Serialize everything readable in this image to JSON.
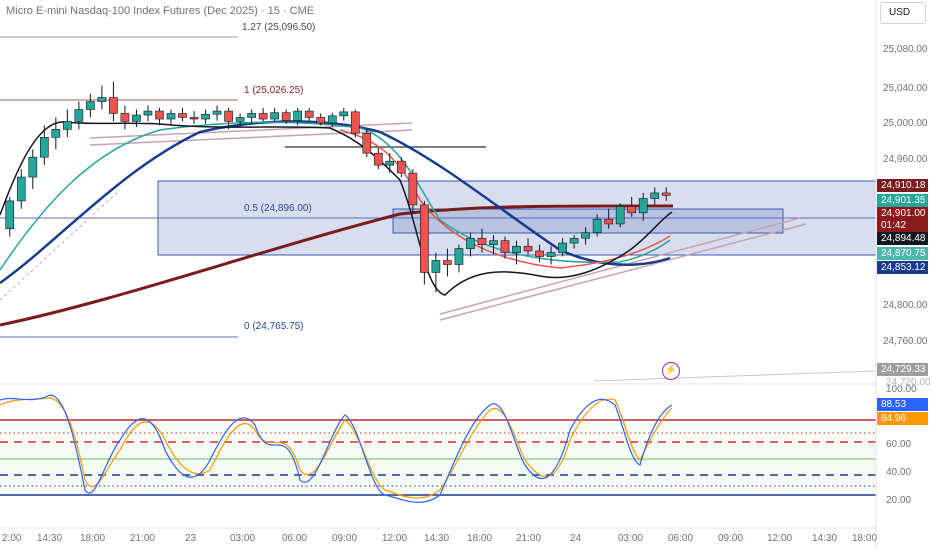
{
  "chart": {
    "title": "Micro E-mini Nasdaq-100 Index Futures (Dec 2025) · 15 · CME",
    "currency": "USD"
  },
  "fib_levels": [
    {
      "label": "1.27 (25,096.50)",
      "color": "#787b86"
    },
    {
      "label": "1 (25,026.25)",
      "color": "#8b1a1a"
    },
    {
      "label": "0.5 (24,896.00)",
      "color": "#2747a3"
    },
    {
      "label": "0 (24,765.75)",
      "color": "#2747a3"
    }
  ],
  "price_axis": {
    "ticks": [
      "25,080.00",
      "25,040.00",
      "25,000.00",
      "24,960.00",
      "24,800.00",
      "24,760.00"
    ],
    "tags": [
      {
        "text": "24,910.18",
        "color": "#7b1c1c"
      },
      {
        "text": "24,901.35",
        "color": "#26a69a"
      },
      {
        "text": "24,901.00",
        "color": "#8b1a1a"
      },
      {
        "text": "01:42",
        "color": "#8b1a1a"
      },
      {
        "text": "24,894.48",
        "color": "#131722"
      },
      {
        "text": "24,870.75",
        "color": "#4db6ac"
      },
      {
        "text": "24,853.12",
        "color": "#1a3a8f"
      },
      {
        "text": "24,729.33",
        "color": "#787b86"
      }
    ],
    "partial_tick": "24,720.00"
  },
  "osc_axis": {
    "ticks": [
      "100.00",
      "60.00",
      "40.00",
      "20.00"
    ],
    "tags": [
      {
        "text": "88.53",
        "color": "#2962ff"
      },
      {
        "text": "84.96",
        "color": "#ff9800"
      }
    ]
  },
  "time_axis": {
    "labels": [
      "2:00",
      "14:30",
      "18:00",
      "21:00",
      "23",
      "03:00",
      "06:00",
      "09:00",
      "12:00",
      "14:30",
      "18:00",
      "21:00",
      "24",
      "03:00",
      "06:00",
      "09:00",
      "12:00",
      "14:30",
      "18:00"
    ]
  },
  "chart_data": {
    "type": "candlestick",
    "title": "Micro E-mini Nasdaq-100 Index Futures (Dec 2025) · 15 · CME",
    "ylim": [
      24720,
      25110
    ],
    "candles": [
      [
        24860,
        24900,
        24850,
        24895
      ],
      [
        24895,
        24935,
        24885,
        24925
      ],
      [
        24925,
        24960,
        24910,
        24950
      ],
      [
        24950,
        24990,
        24940,
        24975
      ],
      [
        24975,
        25000,
        24960,
        24985
      ],
      [
        24985,
        25010,
        24975,
        24995
      ],
      [
        24995,
        25020,
        24985,
        25010
      ],
      [
        25010,
        25030,
        25000,
        25020
      ],
      [
        25020,
        25040,
        25010,
        25025
      ],
      [
        25025,
        25045,
        24995,
        25005
      ],
      [
        25005,
        25015,
        24985,
        24995
      ],
      [
        24995,
        25010,
        24988,
        25003
      ],
      [
        25003,
        25015,
        24995,
        25008
      ],
      [
        25008,
        25012,
        24990,
        24998
      ],
      [
        24998,
        25010,
        24990,
        25005
      ],
      [
        25005,
        25012,
        24995,
        25000
      ],
      [
        25000,
        25008,
        24992,
        24998
      ],
      [
        24998,
        25010,
        24992,
        25004
      ],
      [
        25004,
        25015,
        24996,
        25008
      ],
      [
        25008,
        25012,
        24985,
        24995
      ],
      [
        24995,
        25005,
        24988,
        25000
      ],
      [
        25000,
        25010,
        24992,
        25005
      ],
      [
        25005,
        25012,
        24995,
        24998
      ],
      [
        24998,
        25012,
        24994,
        25006
      ],
      [
        25006,
        25010,
        24992,
        24996
      ],
      [
        24996,
        25012,
        24990,
        25008
      ],
      [
        25008,
        25012,
        24995,
        25000
      ],
      [
        25000,
        25005,
        24990,
        24993
      ],
      [
        24993,
        25006,
        24988,
        25002
      ],
      [
        25002,
        25012,
        24996,
        25007
      ],
      [
        25007,
        25010,
        24975,
        24980
      ],
      [
        24980,
        24985,
        24950,
        24955
      ],
      [
        24955,
        24962,
        24935,
        24940
      ],
      [
        24940,
        24955,
        24930,
        24945
      ],
      [
        24945,
        24950,
        24925,
        24930
      ],
      [
        24930,
        24935,
        24880,
        24890
      ],
      [
        24890,
        24895,
        24790,
        24805
      ],
      [
        24805,
        24830,
        24780,
        24820
      ],
      [
        24820,
        24835,
        24800,
        24815
      ],
      [
        24815,
        24840,
        24805,
        24835
      ],
      [
        24835,
        24855,
        24825,
        24848
      ],
      [
        24848,
        24860,
        24830,
        24840
      ],
      [
        24840,
        24852,
        24828,
        24845
      ],
      [
        24845,
        24850,
        24822,
        24830
      ],
      [
        24830,
        24845,
        24815,
        24838
      ],
      [
        24838,
        24848,
        24828,
        24832
      ],
      [
        24832,
        24840,
        24818,
        24825
      ],
      [
        24825,
        24838,
        24815,
        24830
      ],
      [
        24830,
        24848,
        24825,
        24842
      ],
      [
        24842,
        24852,
        24835,
        24848
      ],
      [
        24848,
        24862,
        24840,
        24855
      ],
      [
        24855,
        24878,
        24850,
        24872
      ],
      [
        24872,
        24885,
        24860,
        24866
      ],
      [
        24866,
        24892,
        24862,
        24888
      ],
      [
        24888,
        24900,
        24875,
        24880
      ],
      [
        24880,
        24905,
        24870,
        24898
      ],
      [
        24898,
        24912,
        24890,
        24905
      ],
      [
        24905,
        24912,
        24895,
        24902
      ]
    ],
    "indicators": [
      "EMA 9",
      "EMA 20",
      "EMA 50",
      "EMA 100",
      "EMA 200",
      "Fibonacci retracement",
      "Stochastic RSI"
    ],
    "stoch_k_last": 88.53,
    "stoch_d_last": 84.96
  }
}
